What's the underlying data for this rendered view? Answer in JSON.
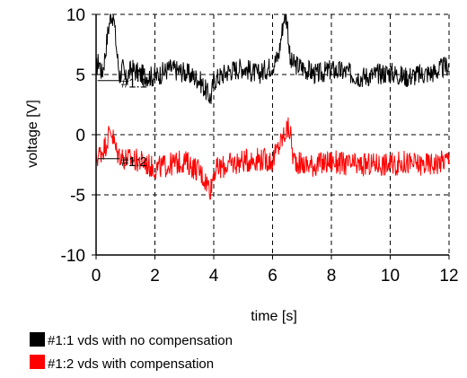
{
  "chart_data": {
    "type": "line",
    "title": "",
    "xlabel": "time [s]",
    "ylabel": "voltage [V]",
    "xlim": [
      0,
      12
    ],
    "ylim": [
      -10,
      10
    ],
    "xticks": [
      0,
      2,
      4,
      6,
      8,
      10,
      12
    ],
    "yticks": [
      -10,
      -5,
      0,
      5,
      10
    ],
    "xtick_labels": [
      "0",
      "2",
      "4",
      "6",
      "8",
      "10",
      "12"
    ],
    "ytick_labels": [
      "-10",
      "-5",
      "0",
      "5",
      "10"
    ],
    "grid": "dashed",
    "legend_position": "bottom-left",
    "series": [
      {
        "name": "#1:1 vds with no compensation",
        "label": "#1:1",
        "color": "#000000",
        "points": [
          [
            0.0,
            5.5
          ],
          [
            0.1,
            6.2
          ],
          [
            0.2,
            5.0
          ],
          [
            0.3,
            6.5
          ],
          [
            0.4,
            8.5
          ],
          [
            0.5,
            10.0
          ],
          [
            0.6,
            9.8
          ],
          [
            0.7,
            7.0
          ],
          [
            0.8,
            4.8
          ],
          [
            0.9,
            5.6
          ],
          [
            1.0,
            4.5
          ],
          [
            1.2,
            5.5
          ],
          [
            1.5,
            5.0
          ],
          [
            2.0,
            4.8
          ],
          [
            2.5,
            5.5
          ],
          [
            3.0,
            5.2
          ],
          [
            3.5,
            4.6
          ],
          [
            3.9,
            3.0
          ],
          [
            4.0,
            4.5
          ],
          [
            4.5,
            5.3
          ],
          [
            5.0,
            5.6
          ],
          [
            5.5,
            5.0
          ],
          [
            6.0,
            5.8
          ],
          [
            6.2,
            6.5
          ],
          [
            6.4,
            10.0
          ],
          [
            6.5,
            9.5
          ],
          [
            6.6,
            6.0
          ],
          [
            7.0,
            5.6
          ],
          [
            7.5,
            5.0
          ],
          [
            8.0,
            5.4
          ],
          [
            8.5,
            5.2
          ],
          [
            9.0,
            4.8
          ],
          [
            9.5,
            5.0
          ],
          [
            10.0,
            5.2
          ],
          [
            10.5,
            4.8
          ],
          [
            11.0,
            5.0
          ],
          [
            11.5,
            5.2
          ],
          [
            12.0,
            5.8
          ]
        ],
        "noise_amplitude": 0.9
      },
      {
        "name": "#1:2 vds with  compensation",
        "label": "#1:2",
        "color": "#ff0000",
        "points": [
          [
            0.0,
            -2.0
          ],
          [
            0.3,
            -1.0
          ],
          [
            0.5,
            0.5
          ],
          [
            0.7,
            -1.5
          ],
          [
            1.0,
            -2.0
          ],
          [
            1.5,
            -2.2
          ],
          [
            2.0,
            -2.8
          ],
          [
            2.5,
            -2.5
          ],
          [
            3.0,
            -2.2
          ],
          [
            3.5,
            -3.0
          ],
          [
            3.9,
            -4.5
          ],
          [
            4.0,
            -3.0
          ],
          [
            4.5,
            -2.5
          ],
          [
            5.0,
            -2.2
          ],
          [
            5.5,
            -2.0
          ],
          [
            6.0,
            -2.2
          ],
          [
            6.3,
            -0.5
          ],
          [
            6.5,
            0.5
          ],
          [
            6.6,
            0.3
          ],
          [
            6.7,
            -2.0
          ],
          [
            7.0,
            -2.5
          ],
          [
            7.5,
            -2.5
          ],
          [
            8.0,
            -2.2
          ],
          [
            8.5,
            -2.5
          ],
          [
            9.0,
            -2.6
          ],
          [
            9.5,
            -2.4
          ],
          [
            10.0,
            -2.5
          ],
          [
            10.5,
            -2.3
          ],
          [
            11.0,
            -2.5
          ],
          [
            11.5,
            -2.4
          ],
          [
            12.0,
            -2.0
          ]
        ],
        "noise_amplitude": 1.0
      }
    ]
  },
  "legend": {
    "items": [
      {
        "label": "#1:1 vds with no compensation",
        "color": "#000000"
      },
      {
        "label": "#1:2 vds with  compensation",
        "color": "#ff0000"
      }
    ]
  }
}
